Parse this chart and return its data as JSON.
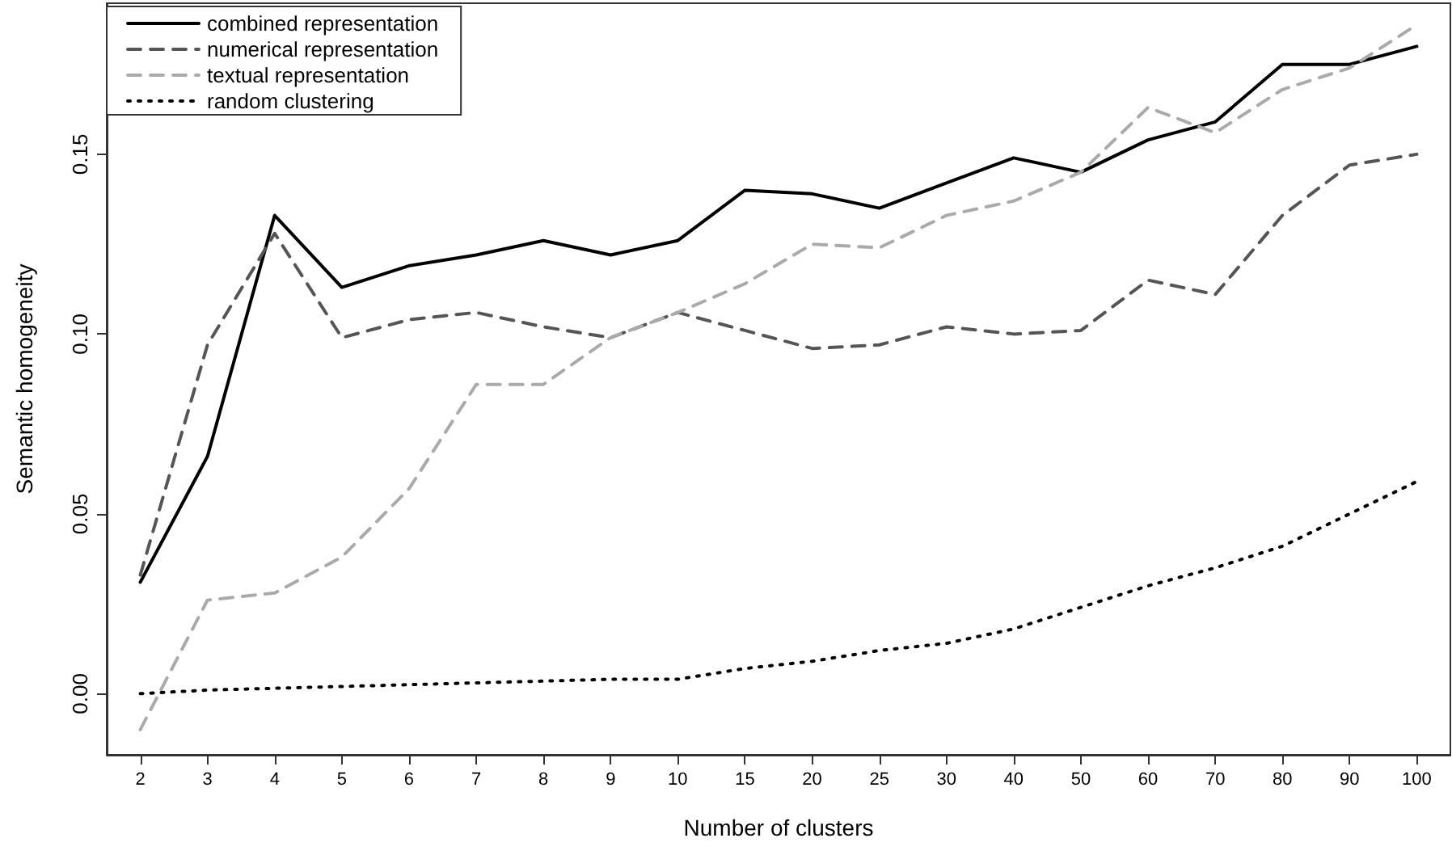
{
  "chart_data": {
    "type": "line",
    "xlabel": "Number of clusters",
    "ylabel": "Semantic homogeneity",
    "categories": [
      "2",
      "3",
      "4",
      "5",
      "6",
      "7",
      "8",
      "9",
      "10",
      "15",
      "20",
      "25",
      "30",
      "40",
      "50",
      "60",
      "70",
      "80",
      "90",
      "100"
    ],
    "series": [
      {
        "name": "combined representation",
        "color": "#000000",
        "line_style": "solid",
        "values": [
          0.031,
          0.066,
          0.133,
          0.113,
          0.119,
          0.122,
          0.126,
          0.122,
          0.126,
          0.14,
          0.139,
          0.135,
          0.142,
          0.149,
          0.145,
          0.154,
          0.159,
          0.175,
          0.175,
          0.18
        ]
      },
      {
        "name": "numerical representation",
        "color": "#555555",
        "line_style": "dashed",
        "values": [
          0.033,
          0.097,
          0.128,
          0.099,
          0.104,
          0.106,
          0.102,
          0.099,
          0.106,
          0.101,
          0.096,
          0.097,
          0.102,
          0.1,
          0.101,
          0.115,
          0.111,
          0.133,
          0.147,
          0.15
        ]
      },
      {
        "name": "textual representation",
        "color": "#aaaaaa",
        "line_style": "dashed",
        "values": [
          -0.01,
          0.026,
          0.028,
          0.038,
          0.057,
          0.086,
          0.086,
          0.099,
          0.106,
          0.114,
          0.125,
          0.124,
          0.133,
          0.137,
          0.145,
          0.163,
          0.156,
          0.168,
          0.174,
          0.186
        ]
      },
      {
        "name": "random clustering",
        "color": "#000000",
        "line_style": "dotted",
        "values": [
          0.0,
          0.001,
          0.0015,
          0.002,
          0.0025,
          0.003,
          0.0035,
          0.004,
          0.004,
          0.007,
          0.009,
          0.012,
          0.014,
          0.018,
          0.024,
          0.03,
          0.035,
          0.041,
          0.05,
          0.059
        ]
      }
    ],
    "ylim": [
      -0.017,
      0.192
    ],
    "yticks": [
      {
        "value": 0,
        "label": "0.00"
      },
      0.05,
      {
        "value": 0.1,
        "label": "0.10"
      },
      0.15
    ],
    "grid": false,
    "legend": "top left",
    "marker": "none"
  }
}
